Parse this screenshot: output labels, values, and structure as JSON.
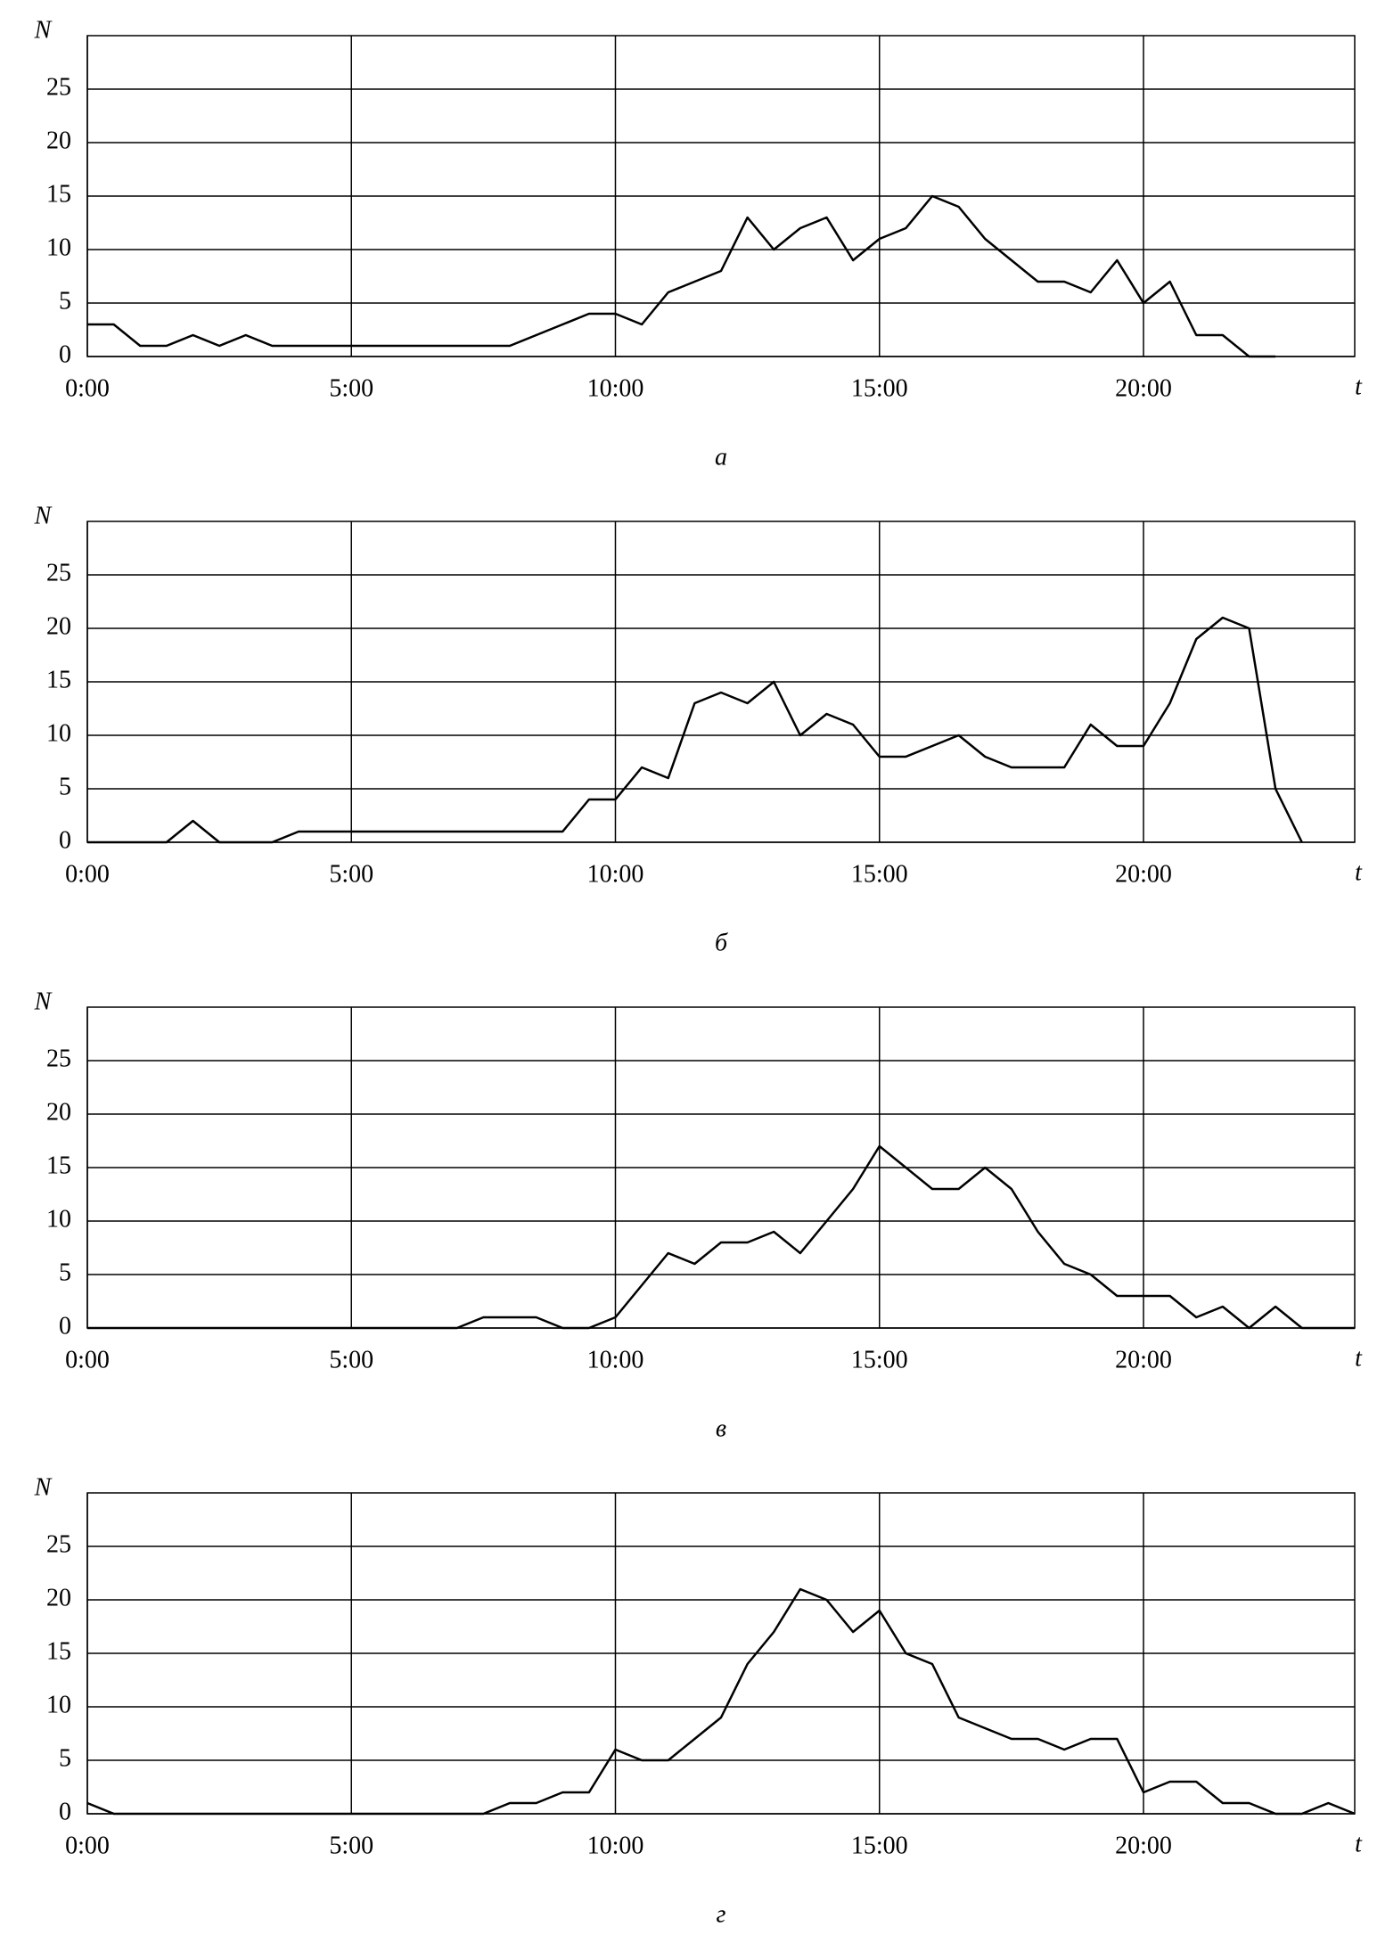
{
  "chart_data": [
    {
      "type": "line",
      "caption": "а",
      "y_label": "N",
      "x_label": "t",
      "x": [
        0,
        0.5,
        1,
        1.5,
        2,
        2.5,
        3,
        3.5,
        4,
        4.5,
        5,
        5.5,
        6,
        6.5,
        7,
        7.5,
        8,
        8.5,
        9,
        9.5,
        10,
        10.5,
        11,
        11.5,
        12,
        12.5,
        13,
        13.5,
        14,
        14.5,
        15,
        15.5,
        16,
        16.5,
        17,
        17.5,
        18,
        18.5,
        19,
        19.5,
        20,
        20.5,
        21,
        21.5,
        22,
        22.5
      ],
      "series": [
        {
          "color": "#000000",
          "values": [
            3,
            3,
            1,
            1,
            2,
            1,
            2,
            1,
            1,
            1,
            1,
            1,
            1,
            1,
            1,
            1,
            1,
            2,
            3,
            4,
            4,
            3,
            6,
            7,
            8,
            13,
            10,
            12,
            13,
            9,
            11,
            12,
            15,
            14,
            11,
            9,
            7,
            7,
            6,
            9,
            5,
            7,
            2,
            2,
            0,
            0
          ]
        }
      ],
      "xlim": [
        0,
        24
      ],
      "ylim": [
        0,
        30
      ],
      "xticks": [
        {
          "value": 0,
          "label": "0:00"
        },
        {
          "value": 5,
          "label": "5:00"
        },
        {
          "value": 10,
          "label": "10:00"
        },
        {
          "value": 15,
          "label": "15:00"
        },
        {
          "value": 20,
          "label": "20:00"
        }
      ],
      "yticks": [
        0,
        5,
        10,
        15,
        20,
        25
      ],
      "grid": true
    },
    {
      "type": "line",
      "caption": "б",
      "y_label": "N",
      "x_label": "t",
      "x": [
        0,
        0.5,
        1,
        1.5,
        2,
        2.5,
        3,
        3.5,
        4,
        4.5,
        5,
        5.5,
        6,
        6.5,
        7,
        7.5,
        8,
        8.5,
        9,
        9.5,
        10,
        10.5,
        11,
        11.5,
        12,
        12.5,
        13,
        13.5,
        14,
        14.5,
        15,
        15.5,
        16,
        16.5,
        17,
        17.5,
        18,
        18.5,
        19,
        19.5,
        20,
        20.5,
        21,
        21.5,
        22,
        22.5,
        23
      ],
      "series": [
        {
          "color": "#000000",
          "values": [
            0,
            0,
            0,
            0,
            2,
            0,
            0,
            0,
            1,
            1,
            1,
            1,
            1,
            1,
            1,
            1,
            1,
            1,
            1,
            4,
            4,
            7,
            6,
            13,
            14,
            13,
            15,
            10,
            12,
            11,
            8,
            8,
            9,
            10,
            8,
            7,
            7,
            7,
            11,
            9,
            9,
            13,
            19,
            21,
            20,
            5,
            0
          ]
        }
      ],
      "xlim": [
        0,
        24
      ],
      "ylim": [
        0,
        30
      ],
      "xticks": [
        {
          "value": 0,
          "label": "0:00"
        },
        {
          "value": 5,
          "label": "5:00"
        },
        {
          "value": 10,
          "label": "10:00"
        },
        {
          "value": 15,
          "label": "15:00"
        },
        {
          "value": 20,
          "label": "20:00"
        }
      ],
      "yticks": [
        0,
        5,
        10,
        15,
        20,
        25
      ],
      "grid": true
    },
    {
      "type": "line",
      "caption": "в",
      "y_label": "N",
      "x_label": "t",
      "x": [
        0,
        0.5,
        1,
        1.5,
        2,
        2.5,
        3,
        3.5,
        4,
        4.5,
        5,
        5.5,
        6,
        6.5,
        7,
        7.5,
        8,
        8.5,
        9,
        9.5,
        10,
        10.5,
        11,
        11.5,
        12,
        12.5,
        13,
        13.5,
        14,
        14.5,
        15,
        15.5,
        16,
        16.5,
        17,
        17.5,
        18,
        18.5,
        19,
        19.5,
        20,
        20.5,
        21,
        21.5,
        22,
        22.5,
        23,
        23.5,
        24
      ],
      "series": [
        {
          "color": "#000000",
          "values": [
            0,
            0,
            0,
            0,
            0,
            0,
            0,
            0,
            0,
            0,
            0,
            0,
            0,
            0,
            0,
            1,
            1,
            1,
            0,
            0,
            1,
            4,
            7,
            6,
            8,
            8,
            9,
            7,
            10,
            13,
            17,
            15,
            13,
            13,
            15,
            13,
            9,
            6,
            5,
            3,
            3,
            3,
            1,
            2,
            0,
            2,
            0,
            0,
            0
          ]
        }
      ],
      "xlim": [
        0,
        24
      ],
      "ylim": [
        0,
        30
      ],
      "xticks": [
        {
          "value": 0,
          "label": "0:00"
        },
        {
          "value": 5,
          "label": "5:00"
        },
        {
          "value": 10,
          "label": "10:00"
        },
        {
          "value": 15,
          "label": "15:00"
        },
        {
          "value": 20,
          "label": "20:00"
        }
      ],
      "yticks": [
        0,
        5,
        10,
        15,
        20,
        25
      ],
      "grid": true
    },
    {
      "type": "line",
      "caption": "г",
      "y_label": "N",
      "x_label": "t",
      "x": [
        0,
        0.5,
        1,
        1.5,
        2,
        2.5,
        3,
        3.5,
        4,
        4.5,
        5,
        5.5,
        6,
        6.5,
        7,
        7.5,
        8,
        8.5,
        9,
        9.5,
        10,
        10.5,
        11,
        11.5,
        12,
        12.5,
        13,
        13.5,
        14,
        14.5,
        15,
        15.5,
        16,
        16.5,
        17,
        17.5,
        18,
        18.5,
        19,
        19.5,
        20,
        20.5,
        21,
        21.5,
        22,
        22.5,
        23,
        23.5,
        24
      ],
      "series": [
        {
          "color": "#000000",
          "values": [
            1,
            0,
            0,
            0,
            0,
            0,
            0,
            0,
            0,
            0,
            0,
            0,
            0,
            0,
            0,
            0,
            1,
            1,
            2,
            2,
            6,
            5,
            5,
            7,
            9,
            14,
            17,
            21,
            20,
            17,
            19,
            15,
            14,
            9,
            8,
            7,
            7,
            6,
            7,
            7,
            2,
            3,
            3,
            1,
            1,
            0,
            0,
            1,
            0
          ]
        }
      ],
      "xlim": [
        0,
        24
      ],
      "ylim": [
        0,
        30
      ],
      "xticks": [
        {
          "value": 0,
          "label": "0:00"
        },
        {
          "value": 5,
          "label": "5:00"
        },
        {
          "value": 10,
          "label": "10:00"
        },
        {
          "value": 15,
          "label": "15:00"
        },
        {
          "value": 20,
          "label": "20:00"
        }
      ],
      "yticks": [
        0,
        5,
        10,
        15,
        20,
        25
      ],
      "grid": true
    }
  ]
}
